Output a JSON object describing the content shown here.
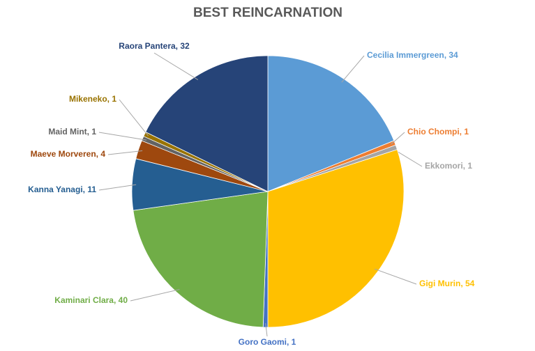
{
  "chart_data": {
    "type": "pie",
    "title": "BEST REINCARNATION",
    "categories": [
      "Cecilia Immergreen",
      "Chio Chompi",
      "Ekkomori",
      "Gigi Murin",
      "Goro Gaomi",
      "Kaminari Clara",
      "Kanna Yanagi",
      "Maeve Morveren",
      "Maid Mint",
      "Mikeneko",
      "Raora Pantera"
    ],
    "values": [
      34,
      1,
      1,
      54,
      1,
      40,
      11,
      4,
      1,
      1,
      32
    ],
    "value_labels": [
      "Cecilia Immergreen, 34",
      "Chio Chompi, 1",
      "Ekkomori, 1",
      "Gigi Murin, 54",
      "Goro Gaomi, 1",
      "Kaminari Clara, 40",
      "Kanna Yanagi, 11",
      "Maeve Morveren, 4",
      "Maid Mint, 1",
      "Mikeneko, 1",
      "Raora Pantera, 32"
    ],
    "colors": [
      "#5b9bd5",
      "#ed7d31",
      "#a5a5a5",
      "#ffc000",
      "#4472c4",
      "#70ad47",
      "#255e91",
      "#9e480e",
      "#636363",
      "#997300",
      "#264478"
    ]
  }
}
